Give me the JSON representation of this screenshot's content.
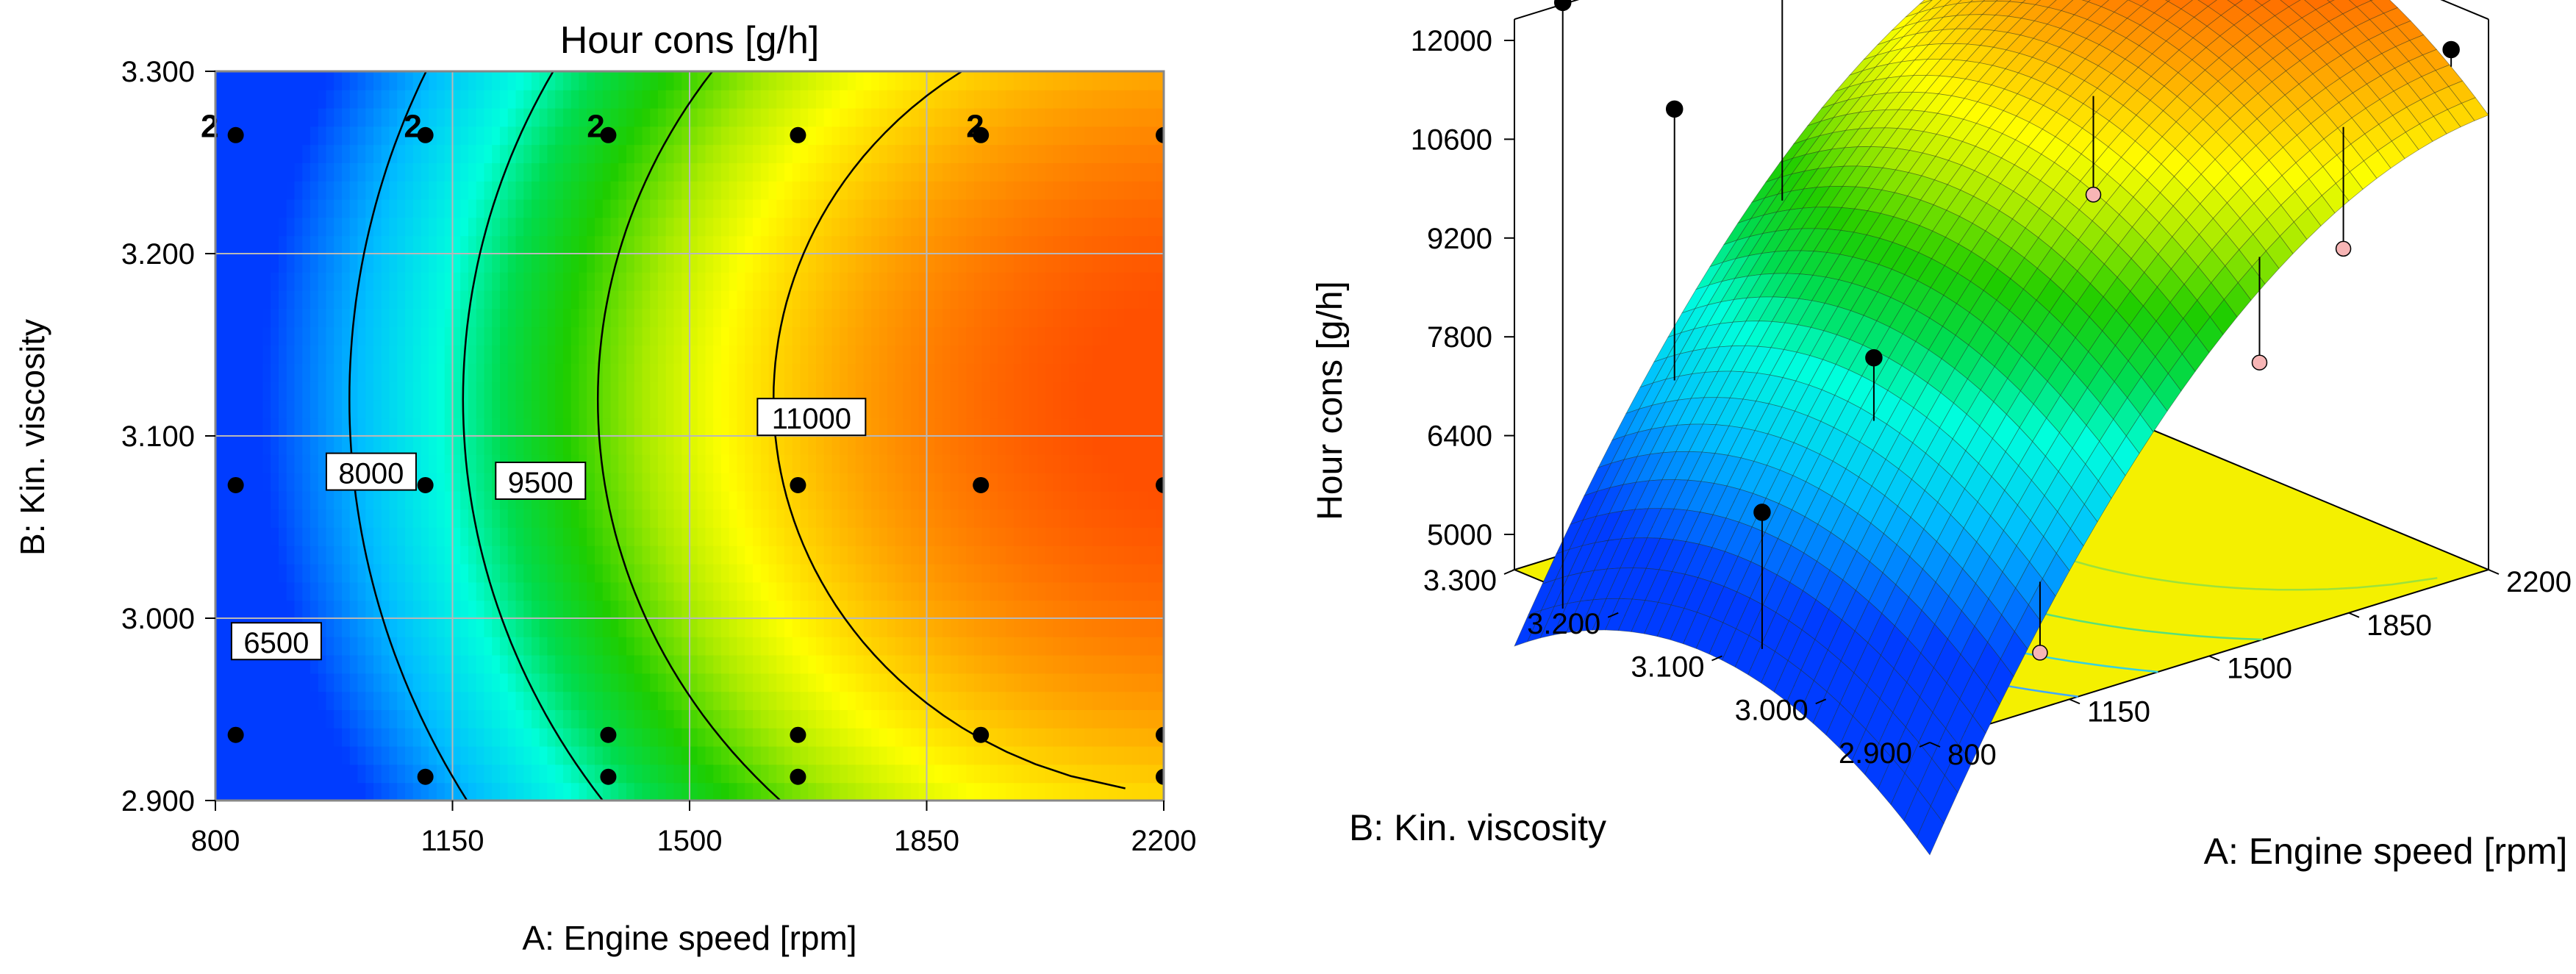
{
  "chart_data": [
    {
      "type": "contour",
      "title": "Hour cons [g/h]",
      "xlabel": "A: Engine speed [rpm]",
      "ylabel": "B: Kin. viscosity",
      "xlim": [
        800,
        2200
      ],
      "ylim": [
        2.9,
        3.3
      ],
      "x_ticks": [
        "800",
        "1150",
        "1500",
        "1850",
        "2200"
      ],
      "y_ticks": [
        "2.900",
        "3.000",
        "3.100",
        "3.200",
        "3.300"
      ],
      "grid": true,
      "contours": [
        {
          "label": "6500",
          "value": 6500,
          "label_at": [
            890,
            2.987
          ]
        },
        {
          "label": "8000",
          "value": 8000,
          "label_at": [
            1030,
            3.08
          ]
        },
        {
          "label": "9500",
          "value": 9500,
          "label_at": [
            1280,
            3.075
          ]
        },
        {
          "label": "11000",
          "value": 11000,
          "label_at": [
            1680,
            3.11
          ]
        }
      ],
      "model": {
        "x_peak": 2250,
        "y_peak": 3.12,
        "zmax": 12500,
        "x_width": 1400,
        "y_width": 0.8,
        "y_span": 0.25
      },
      "design_points": [
        {
          "x": 830,
          "y": 3.265
        },
        {
          "x": 1110,
          "y": 3.265
        },
        {
          "x": 1380,
          "y": 3.265
        },
        {
          "x": 1660,
          "y": 3.265
        },
        {
          "x": 1930,
          "y": 3.265
        },
        {
          "x": 2200,
          "y": 3.265
        },
        {
          "x": 830,
          "y": 3.073
        },
        {
          "x": 1110,
          "y": 3.073
        },
        {
          "x": 1660,
          "y": 3.073
        },
        {
          "x": 1930,
          "y": 3.073
        },
        {
          "x": 2200,
          "y": 3.073
        },
        {
          "x": 830,
          "y": 2.936
        },
        {
          "x": 1380,
          "y": 2.936
        },
        {
          "x": 1660,
          "y": 2.936
        },
        {
          "x": 1930,
          "y": 2.936
        },
        {
          "x": 2200,
          "y": 2.936
        },
        {
          "x": 1110,
          "y": 2.913
        },
        {
          "x": 1380,
          "y": 2.913
        },
        {
          "x": 1660,
          "y": 2.913
        },
        {
          "x": 2200,
          "y": 2.913
        }
      ],
      "replicate_markers": [
        {
          "label": "2",
          "x": 800,
          "y": 3.27
        },
        {
          "label": "2",
          "x": 1100,
          "y": 3.27
        },
        {
          "label": "2",
          "x": 1370,
          "y": 3.27
        },
        {
          "label": "2",
          "x": 1930,
          "y": 3.27
        }
      ]
    },
    {
      "type": "surface3d",
      "zlabel": "Hour cons [g/h]",
      "xlabel": "A: Engine speed [rpm]",
      "ylabel": "B: Kin. viscosity",
      "x_ticks": [
        "800",
        "1150",
        "1500",
        "1850",
        "2200"
      ],
      "y_ticks": [
        "2.900",
        "3.000",
        "3.100",
        "3.200",
        "3.300"
      ],
      "z_ticks": [
        "5000",
        "6400",
        "7800",
        "9200",
        "10600",
        "12000"
      ],
      "zlim": [
        5000,
        12000
      ]
    }
  ]
}
